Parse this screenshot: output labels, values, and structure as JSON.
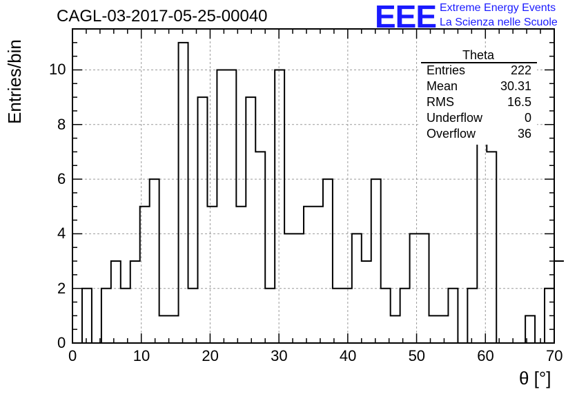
{
  "figure": {
    "title": "CAGL-03-2017-05-25-00040",
    "logo_text": "EEE",
    "logo_line1": "Extreme Energy Events",
    "logo_line2": "La Scienza nelle Scuole"
  },
  "stats": {
    "title": "Theta",
    "rows": [
      {
        "key": "Entries",
        "value": "222"
      },
      {
        "key": "Mean",
        "value": "30.31"
      },
      {
        "key": "RMS",
        "value": "16.5"
      },
      {
        "key": "Underflow",
        "value": "0"
      },
      {
        "key": "Overflow",
        "value": "36"
      }
    ]
  },
  "chart_data": {
    "type": "histogram",
    "title": "CAGL-03-2017-05-25-00040",
    "xlabel": "θ [°]",
    "ylabel": "Entries/bin",
    "xlim": [
      0,
      70
    ],
    "ylim": [
      0,
      11.5
    ],
    "grid": true,
    "legend": "none",
    "bin_width": 1.4,
    "x_ticks": [
      0,
      10,
      20,
      30,
      40,
      50,
      60,
      70
    ],
    "y_ticks": [
      0,
      2,
      4,
      6,
      8,
      10
    ],
    "bin_edges_start": 0,
    "values": [
      0,
      2,
      0,
      2,
      3,
      2,
      3,
      5,
      6,
      1,
      1,
      11,
      2,
      9,
      5,
      10,
      10,
      5,
      9,
      7,
      2,
      10,
      4,
      4,
      5,
      5,
      6,
      2,
      2,
      4,
      3,
      6,
      2,
      1,
      2,
      4,
      4,
      1,
      1,
      2,
      0,
      2,
      8,
      7,
      0,
      0,
      0,
      1,
      0,
      2,
      3
    ],
    "line_color": "#000000",
    "grid_color": "#999999"
  }
}
